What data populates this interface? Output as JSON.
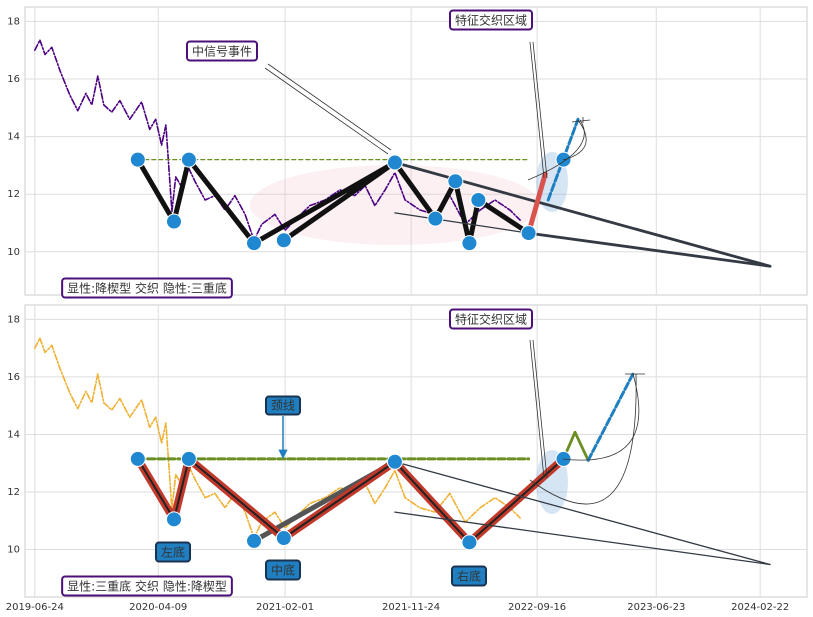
{
  "chart_data": [
    {
      "type": "line",
      "xlim": [
        "2019-06-01",
        "2024-06-11"
      ],
      "ylim": [
        8.5,
        18.5
      ],
      "yticks": [
        10,
        12,
        14,
        16,
        18
      ],
      "grid": true,
      "annotations": [
        "中信号事件",
        "特征交织区域",
        "显性:降楔型 交织 隐性:三重底"
      ],
      "series": [
        {
          "color": "#4b0082",
          "style": "dashdot",
          "x": [
            "2019-06-24",
            "2019-07-06",
            "2019-07-18",
            "2019-08-03",
            "2019-08-22",
            "2019-09-14",
            "2019-10-03",
            "2019-10-22",
            "2019-11-05",
            "2019-11-19",
            "2019-12-03",
            "2019-12-22",
            "2020-01-10",
            "2020-02-02",
            "2020-03-01",
            "2020-03-20",
            "2020-04-03",
            "2020-04-17",
            "2020-04-27",
            "2020-05-11",
            "2020-05-20",
            "2020-06-03",
            "2020-06-18",
            "2020-07-04",
            "2020-07-28",
            "2020-08-20",
            "2020-09-13",
            "2020-10-06",
            "2020-10-30",
            "2020-11-20",
            "2020-12-08",
            "2021-01-08",
            "2021-02-01",
            "2021-02-24",
            "2021-03-31",
            "2021-05-06",
            "2021-06-10",
            "2021-07-15",
            "2021-08-08",
            "2021-08-31",
            "2021-09-24",
            "2021-10-17",
            "2021-11-10",
            "2021-12-15",
            "2022-01-19",
            "2022-02-23",
            "2022-03-31",
            "2022-05-05",
            "2022-06-09",
            "2022-07-14",
            "2022-08-07"
          ],
          "values": [
            17.0,
            17.35,
            16.85,
            17.1,
            16.3,
            15.45,
            14.9,
            15.5,
            15.1,
            16.1,
            15.1,
            14.85,
            15.25,
            14.6,
            15.2,
            14.25,
            14.6,
            13.7,
            14.4,
            11.4,
            12.6,
            12.25,
            12.95,
            12.45,
            11.8,
            11.95,
            11.45,
            11.95,
            11.3,
            10.4,
            10.95,
            11.3,
            10.75,
            11.1,
            11.6,
            11.8,
            12.15,
            11.95,
            12.3,
            11.6,
            12.15,
            12.75,
            11.8,
            11.45,
            11.3,
            11.95,
            10.95,
            11.45,
            11.8,
            11.45,
            11.1
          ]
        },
        {
          "color": "#6b8e23",
          "style": "dashed",
          "x": [
            "2020-02-21",
            "2022-08-27"
          ],
          "values": [
            13.2,
            13.2
          ]
        },
        {
          "color": "#111111",
          "style": "thick",
          "x": [
            "2020-02-21",
            "2020-05-16",
            "2020-06-20",
            "2020-11-20",
            "2021-10-17"
          ],
          "values": [
            13.2,
            11.05,
            13.2,
            10.3,
            13.1
          ]
        },
        {
          "color": "#111111",
          "style": "thick",
          "x": [
            "2021-01-29",
            "2021-10-17",
            "2022-01-20",
            "2022-03-08",
            "2022-04-10",
            "2022-05-01",
            "2022-08-27"
          ],
          "values": [
            10.4,
            13.1,
            11.15,
            12.45,
            10.3,
            11.8,
            10.65
          ]
        },
        {
          "color": "#333a44",
          "style": "medium",
          "x": [
            "2021-10-17",
            "2024-03-16"
          ],
          "values": [
            13.1,
            9.5
          ]
        },
        {
          "color": "#333a44",
          "style": "medium",
          "x": [
            "2022-08-27",
            "2024-03-16"
          ],
          "values": [
            10.65,
            9.5
          ]
        },
        {
          "color": "#333a44",
          "style": "thin",
          "x": [
            "2021-10-17",
            "2022-08-27"
          ],
          "values": [
            11.35,
            10.65
          ]
        },
        {
          "color": "#d9534f",
          "style": "thick",
          "x": [
            "2022-08-27",
            "2022-10-05"
          ],
          "values": [
            10.65,
            12.7
          ]
        },
        {
          "color": "#1f7fc0",
          "style": "dashed-thick",
          "x": [
            "2022-10-12",
            "2022-12-21"
          ],
          "values": [
            11.8,
            14.6
          ]
        },
        {
          "color": "#1f88d0",
          "style": "markers",
          "x": [
            "2020-02-21",
            "2020-05-16",
            "2020-06-20",
            "2020-11-20",
            "2021-01-29",
            "2021-10-17",
            "2022-01-20",
            "2022-03-08",
            "2022-04-10",
            "2022-05-01",
            "2022-08-27",
            "2022-11-17"
          ],
          "values": [
            13.2,
            11.05,
            13.2,
            10.3,
            10.4,
            13.1,
            11.15,
            12.45,
            10.3,
            11.8,
            10.65,
            13.2
          ]
        }
      ]
    },
    {
      "type": "line",
      "xlim": [
        "2019-06-01",
        "2024-06-11"
      ],
      "ylim": [
        8.35,
        18.5
      ],
      "yticks": [
        10,
        12,
        14,
        16,
        18
      ],
      "grid": true,
      "xticks": [
        "2019-06-24",
        "2020-04-09",
        "2021-02-01",
        "2021-11-24",
        "2022-09-16",
        "2023-06-23",
        "2024-02-22"
      ],
      "annotations": [
        "特征交织区域",
        "颈线",
        "左底",
        "中底",
        "右底",
        "显性:三重底 交织 隐性:降楔型"
      ],
      "series": [
        {
          "color": "#f0b030",
          "style": "dashdot",
          "x": [
            "2019-06-24",
            "2019-07-06",
            "2019-07-18",
            "2019-08-03",
            "2019-08-22",
            "2019-09-14",
            "2019-10-03",
            "2019-10-22",
            "2019-11-05",
            "2019-11-19",
            "2019-12-03",
            "2019-12-22",
            "2020-01-10",
            "2020-02-02",
            "2020-03-01",
            "2020-03-20",
            "2020-04-03",
            "2020-04-17",
            "2020-04-27",
            "2020-05-11",
            "2020-05-20",
            "2020-06-03",
            "2020-06-18",
            "2020-07-04",
            "2020-07-28",
            "2020-08-20",
            "2020-09-13",
            "2020-10-06",
            "2020-10-30",
            "2020-11-20",
            "2020-12-08",
            "2021-01-08",
            "2021-02-01",
            "2021-02-24",
            "2021-03-31",
            "2021-05-06",
            "2021-06-10",
            "2021-07-15",
            "2021-08-08",
            "2021-08-31",
            "2021-09-24",
            "2021-10-17",
            "2021-11-10",
            "2021-12-15",
            "2022-01-19",
            "2022-02-23",
            "2022-03-31",
            "2022-05-05",
            "2022-06-09",
            "2022-07-14",
            "2022-08-07"
          ],
          "values": [
            17.0,
            17.35,
            16.85,
            17.1,
            16.3,
            15.45,
            14.9,
            15.5,
            15.1,
            16.1,
            15.1,
            14.85,
            15.25,
            14.6,
            15.2,
            14.25,
            14.6,
            13.7,
            14.4,
            11.4,
            12.6,
            12.25,
            12.95,
            12.45,
            11.8,
            11.95,
            11.45,
            11.95,
            11.3,
            10.4,
            10.95,
            11.3,
            10.75,
            11.1,
            11.6,
            11.8,
            12.15,
            11.95,
            12.3,
            11.6,
            12.15,
            12.75,
            11.8,
            11.45,
            11.3,
            11.95,
            10.95,
            11.45,
            11.8,
            11.45,
            11.1
          ]
        },
        {
          "color": "#6b8e23",
          "style": "dashed-thick",
          "x": [
            "2020-02-21",
            "2022-08-27"
          ],
          "values": [
            13.15,
            13.15
          ]
        },
        {
          "color": "#555555",
          "style": "thick",
          "x": [
            "2020-11-20",
            "2021-10-17"
          ],
          "values": [
            10.3,
            13.05
          ]
        },
        {
          "color": "#c0392b",
          "style": "outlined",
          "x": [
            "2020-02-21",
            "2020-05-16",
            "2020-06-20",
            "2021-01-29",
            "2021-10-17",
            "2022-04-10",
            "2022-11-17"
          ],
          "values": [
            13.15,
            11.05,
            13.15,
            10.4,
            13.05,
            10.25,
            13.15
          ]
        },
        {
          "color": "#333a44",
          "style": "thin",
          "x": [
            "2021-10-17",
            "2024-03-16"
          ],
          "values": [
            13.05,
            9.48
          ]
        },
        {
          "color": "#333a44",
          "style": "thin",
          "x": [
            "2021-10-17",
            "2024-03-16"
          ],
          "values": [
            11.3,
            9.48
          ]
        },
        {
          "color": "#6b8e23",
          "style": "medium",
          "x": [
            "2022-11-17",
            "2022-12-14",
            "2023-01-14"
          ],
          "values": [
            13.15,
            14.08,
            13.1
          ]
        },
        {
          "color": "#1f7fc0",
          "style": "dashed-thick",
          "x": [
            "2023-01-14",
            "2023-04-29"
          ],
          "values": [
            13.1,
            16.1
          ]
        },
        {
          "color": "#1f88d0",
          "style": "markers",
          "x": [
            "2020-02-21",
            "2020-05-16",
            "2020-06-20",
            "2020-11-20",
            "2021-01-29",
            "2021-10-17",
            "2022-04-10",
            "2022-11-17"
          ],
          "values": [
            13.15,
            11.05,
            13.15,
            10.3,
            10.4,
            13.05,
            10.25,
            13.15
          ]
        }
      ]
    }
  ]
}
